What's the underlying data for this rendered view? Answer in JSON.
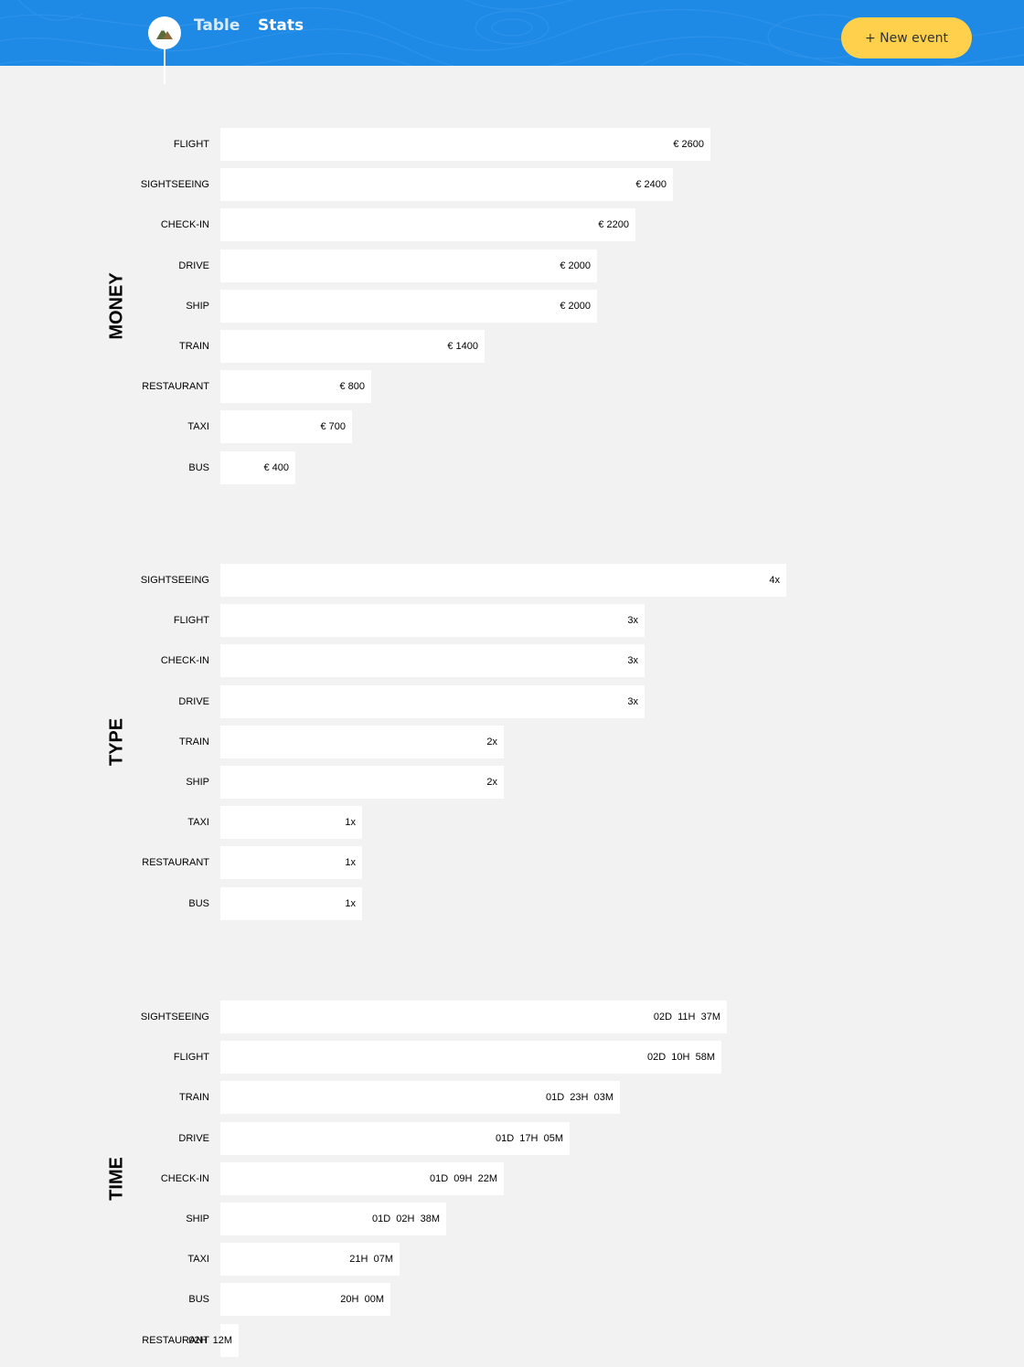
{
  "header": {
    "nav_table": "Table",
    "nav_stats": "Stats",
    "new_event_label": "+ New event",
    "background_color": "#1e8ae6",
    "button_color": "#ffd04b",
    "logo_icon": "mountain-icon"
  },
  "chart_data": [
    {
      "type": "bar",
      "orientation": "horizontal",
      "title": "MONEY",
      "categories": [
        "FLIGHT",
        "SIGHTSEEING",
        "CHECK-IN",
        "DRIVE",
        "SHIP",
        "TRAIN",
        "RESTAURANT",
        "TAXI",
        "BUS"
      ],
      "values": [
        2600,
        2400,
        2200,
        2000,
        2000,
        1400,
        800,
        700,
        400
      ],
      "labels": [
        "€ 2600",
        "€ 2400",
        "€ 2200",
        "€ 2000",
        "€ 2000",
        "€ 1400",
        "€ 800",
        "€ 700",
        "€ 400"
      ]
    },
    {
      "type": "bar",
      "orientation": "horizontal",
      "title": "TYPE",
      "categories": [
        "SIGHTSEEING",
        "FLIGHT",
        "CHECK-IN",
        "DRIVE",
        "TRAIN",
        "SHIP",
        "TAXI",
        "RESTAURANT",
        "BUS"
      ],
      "values": [
        4,
        3,
        3,
        3,
        2,
        2,
        1,
        1,
        1
      ],
      "labels": [
        "4x",
        "3x",
        "3x",
        "3x",
        "2x",
        "2x",
        "1x",
        "1x",
        "1x"
      ]
    },
    {
      "type": "bar",
      "orientation": "horizontal",
      "title": "TIME",
      "categories": [
        "SIGHTSEEING",
        "FLIGHT",
        "TRAIN",
        "DRIVE",
        "CHECK-IN",
        "SHIP",
        "TAXI",
        "BUS",
        "RESTAURANT"
      ],
      "values": [
        3577,
        3538,
        2823,
        2465,
        2002,
        1598,
        1267,
        1200,
        132
      ],
      "value_unit": "minutes",
      "labels": [
        "02D  11H  37M",
        "02D  10H  58M",
        "01D  23H  03M",
        "01D  17H  05M",
        "01D  09H  22M",
        "01D  02H  38M",
        "21H  07M",
        "20H  00M",
        "02H  12M"
      ]
    }
  ]
}
